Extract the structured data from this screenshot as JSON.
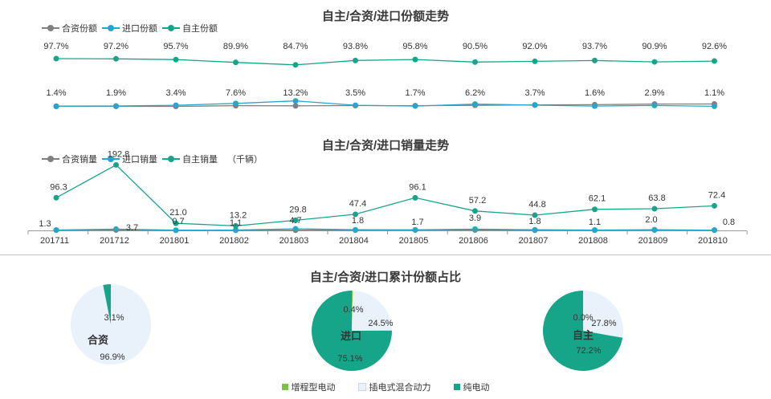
{
  "colors": {
    "hezi": "#7f7f7f",
    "jinkou": "#27a6c9",
    "zizhu": "#17a58a",
    "pie_zengcheng": "#7ac143",
    "pie_chadian": "#e9f1fb",
    "pie_chundian": "#17a58a"
  },
  "legend_share": [
    "合资份额",
    "进口份额",
    "自主份额"
  ],
  "legend_sales": [
    "合资销量",
    "进口销量",
    "自主销量"
  ],
  "legend_sales_unit": "（千辆）",
  "bottom_legend": [
    "增程型电动",
    "插电式混合动力",
    "纯电动"
  ],
  "chart_data": [
    {
      "type": "line",
      "title": "自主/合资/进口份额走势",
      "categories": [
        "201711",
        "201712",
        "201801",
        "201802",
        "201803",
        "201804",
        "201805",
        "201806",
        "201807",
        "201808",
        "201809",
        "201810"
      ],
      "series": [
        {
          "name": "合资份额",
          "values": [
            0.9,
            0.9,
            0.9,
            2.5,
            2.1,
            2.7,
            2.5,
            3.3,
            4.3,
            4.7,
            6.2,
            6.3
          ]
        },
        {
          "name": "进口份额",
          "values": [
            1.4,
            1.9,
            3.4,
            7.6,
            13.2,
            3.5,
            1.7,
            6.2,
            3.7,
            1.6,
            2.9,
            1.1
          ]
        },
        {
          "name": "自主份额",
          "values": [
            97.7,
            97.2,
            95.7,
            89.9,
            84.7,
            93.8,
            95.8,
            90.5,
            92.0,
            93.7,
            90.9,
            92.6
          ]
        }
      ],
      "labels_shown": {
        "进口份额": [
          "1.4%",
          "1.9%",
          "3.4%",
          "7.6%",
          "13.2%",
          "3.5%",
          "1.7%",
          "6.2%",
          "3.7%",
          "1.6%",
          "2.9%",
          "1.1%"
        ],
        "自主份额": [
          "97.7%",
          "97.2%",
          "95.7%",
          "89.9%",
          "84.7%",
          "93.8%",
          "95.8%",
          "90.5%",
          "92.0%",
          "93.7%",
          "90.9%",
          "92.6%"
        ]
      }
    },
    {
      "type": "line",
      "title": "自主/合资/进口销量走势",
      "categories": [
        "201711",
        "201712",
        "201801",
        "201802",
        "201803",
        "201804",
        "201805",
        "201806",
        "201807",
        "201808",
        "201809",
        "201810"
      ],
      "series": [
        {
          "name": "合资销量",
          "values": [
            0.9,
            1.2,
            0.2,
            0.4,
            0.5,
            0.9,
            1.1,
            1.2,
            0.6,
            0.8,
            1.0,
            1.0
          ]
        },
        {
          "name": "进口销量",
          "values": [
            1.3,
            3.7,
            0.7,
            1.1,
            4.7,
            1.8,
            1.7,
            3.9,
            1.8,
            1.1,
            2.0,
            0.8
          ]
        },
        {
          "name": "自主销量",
          "values": [
            96.3,
            192.8,
            21.0,
            13.2,
            29.8,
            47.4,
            96.1,
            57.2,
            44.8,
            62.1,
            63.8,
            72.4
          ]
        }
      ],
      "labels_shown": {
        "进口销量": [
          "1.3",
          "3.7",
          "0.7",
          "1.1",
          "4.7",
          "1.8",
          "1.7",
          "3.9",
          "1.8",
          "1.1",
          "2.0",
          "0.8"
        ],
        "自主销量": [
          "96.3",
          "192.8",
          "21.0",
          "13.2",
          "29.8",
          "47.4",
          "96.1",
          "57.2",
          "44.8",
          "62.1",
          "63.8",
          "72.4"
        ]
      }
    },
    {
      "type": "pie",
      "title": "自主/合资/进口累计份额占比",
      "pies": [
        {
          "name": "合资",
          "slices": [
            {
              "label": "增程型电动",
              "value": 0.0
            },
            {
              "label": "插电式混合动力",
              "value": 96.9
            },
            {
              "label": "纯电动",
              "value": 3.1
            }
          ],
          "labels": [
            "3.1%",
            "96.9%"
          ]
        },
        {
          "name": "进口",
          "slices": [
            {
              "label": "增程型电动",
              "value": 0.4
            },
            {
              "label": "插电式混合动力",
              "value": 24.5
            },
            {
              "label": "纯电动",
              "value": 75.1
            }
          ],
          "labels": [
            "0.4%",
            "24.5%",
            "75.1%"
          ]
        },
        {
          "name": "自主",
          "slices": [
            {
              "label": "增程型电动",
              "value": 0.0
            },
            {
              "label": "插电式混合动力",
              "value": 27.8
            },
            {
              "label": "纯电动",
              "value": 72.2
            }
          ],
          "labels": [
            "0.0%",
            "27.8%",
            "72.2%"
          ]
        }
      ]
    }
  ]
}
